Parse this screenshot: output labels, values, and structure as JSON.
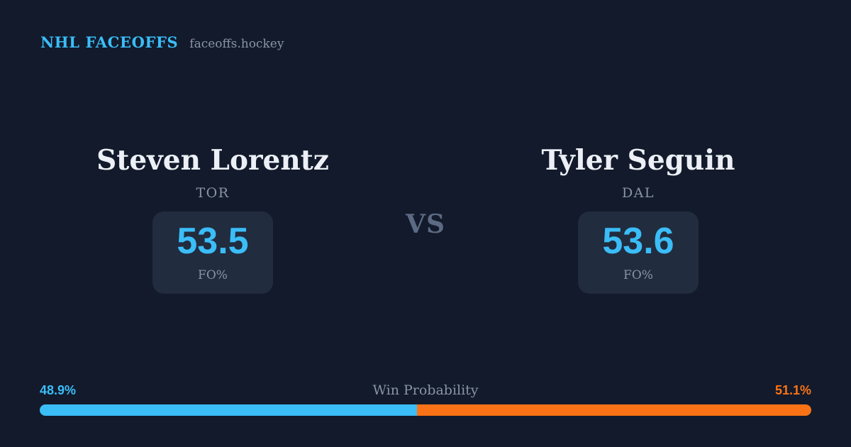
{
  "header": {
    "brand": "NHL FACEOFFS",
    "site": "faceoffs.hockey"
  },
  "matchup": {
    "vs_label": "VS",
    "players": [
      {
        "name": "Steven Lorentz",
        "team": "TOR",
        "stat_value": "53.5",
        "stat_label": "FO%"
      },
      {
        "name": "Tyler Seguin",
        "team": "DAL",
        "stat_value": "53.6",
        "stat_label": "FO%"
      }
    ]
  },
  "win_probability": {
    "label": "Win Probability",
    "left_label": "48.9%",
    "right_label": "51.1%",
    "left_value": 48.9,
    "right_value": 51.1
  },
  "colors": {
    "background": "#121a2b",
    "card": "#212c3e",
    "accent_blue": "#3bbdf8",
    "accent_orange": "#f97316",
    "text_primary": "#ecf0f6",
    "text_muted": "#8a94a6",
    "vs": "#5c6a83"
  }
}
